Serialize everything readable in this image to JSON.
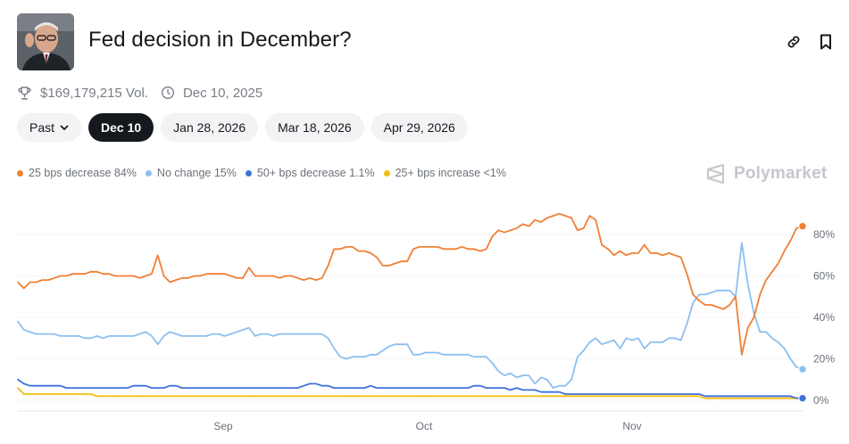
{
  "header": {
    "title": "Fed decision in December?",
    "link_icon": "link-icon",
    "bookmark_icon": "bookmark-icon"
  },
  "meta": {
    "volume": "$169,179,215 Vol.",
    "date": "Dec 10, 2025",
    "trophy_icon": "trophy-icon",
    "clock_icon": "clock-icon"
  },
  "tabs": [
    {
      "label": "Past",
      "active": false
    },
    {
      "label": "Dec 10",
      "active": true
    },
    {
      "label": "Jan 28, 2026",
      "active": false
    },
    {
      "label": "Mar 18, 2026",
      "active": false
    },
    {
      "label": "Apr 29, 2026",
      "active": false
    }
  ],
  "brand": "Polymarket",
  "colors": {
    "orange": "#f07f33",
    "light_blue": "#8cbff0",
    "blue": "#3e72dc",
    "yellow": "#f2bd0f"
  },
  "chart_data": {
    "type": "line",
    "x_ticks": [
      "Sep",
      "Oct",
      "Nov"
    ],
    "y_ticks": [
      "0%",
      "20%",
      "40%",
      "60%",
      "80%"
    ],
    "ylim": [
      0,
      100
    ],
    "grid": "horizontal dotted",
    "legend": "top-left",
    "series": [
      {
        "name": "25 bps decrease",
        "legend_label": "25 bps decrease 84%",
        "color": "#f07f33",
        "values": [
          57,
          54,
          57,
          57,
          58,
          58,
          59,
          60,
          60,
          61,
          61,
          61,
          62,
          62,
          61,
          61,
          60,
          60,
          60,
          60,
          59,
          60,
          61,
          70,
          60,
          57,
          58,
          59,
          59,
          60,
          60,
          61,
          61,
          61,
          61,
          60,
          59,
          59,
          64,
          60,
          60,
          60,
          60,
          59,
          60,
          60,
          59,
          58,
          59,
          58,
          59,
          65,
          73,
          73,
          74,
          74,
          72,
          72,
          71,
          69,
          65,
          65,
          66,
          67,
          67,
          73,
          74,
          74,
          74,
          74,
          73,
          73,
          73,
          74,
          73,
          73,
          72,
          73,
          79,
          82,
          81,
          82,
          83,
          85,
          84,
          87,
          86,
          88,
          89,
          90,
          89,
          88,
          82,
          83,
          89,
          87,
          75,
          73,
          70,
          72,
          70,
          71,
          71,
          75,
          71,
          71,
          70,
          71,
          70,
          69,
          61,
          51,
          48,
          46,
          46,
          45,
          44,
          46,
          50,
          22,
          35,
          40,
          51,
          58,
          62,
          66,
          72,
          77,
          83,
          84
        ]
      },
      {
        "name": "No change",
        "legend_label": "No change 15%",
        "color": "#8cbff0",
        "values": [
          38,
          34,
          33,
          32,
          32,
          32,
          32,
          31,
          31,
          31,
          31,
          30,
          30,
          31,
          30,
          31,
          31,
          31,
          31,
          31,
          32,
          33,
          31,
          27,
          31,
          33,
          32,
          31,
          31,
          31,
          31,
          31,
          32,
          32,
          31,
          32,
          33,
          34,
          35,
          31,
          32,
          32,
          31,
          32,
          32,
          32,
          32,
          32,
          32,
          32,
          32,
          30,
          25,
          21,
          20,
          21,
          21,
          21,
          22,
          22,
          24,
          26,
          27,
          27,
          27,
          22,
          22,
          23,
          23,
          23,
          22,
          22,
          22,
          22,
          22,
          21,
          21,
          21,
          18,
          14,
          12,
          13,
          11,
          12,
          12,
          8,
          11,
          10,
          6,
          7,
          7,
          10,
          21,
          24,
          28,
          30,
          27,
          28,
          29,
          25,
          30,
          29,
          30,
          25,
          28,
          28,
          28,
          30,
          30,
          29,
          37,
          47,
          51,
          51,
          52,
          53,
          53,
          53,
          50,
          76,
          56,
          42,
          33,
          33,
          30,
          28,
          25,
          20,
          16,
          15
        ]
      },
      {
        "name": "50+ bps decrease",
        "legend_label": "50+ bps decrease 1.1%",
        "color": "#3e72dc",
        "values": [
          10,
          8,
          7,
          7,
          7,
          7,
          7,
          7,
          6,
          6,
          6,
          6,
          6,
          6,
          6,
          6,
          6,
          6,
          6,
          7,
          7,
          7,
          6,
          6,
          6,
          7,
          7,
          6,
          6,
          6,
          6,
          6,
          6,
          6,
          6,
          6,
          6,
          6,
          6,
          6,
          6,
          6,
          6,
          6,
          6,
          6,
          6,
          7,
          8,
          8,
          7,
          7,
          6,
          6,
          6,
          6,
          6,
          6,
          7,
          6,
          6,
          6,
          6,
          6,
          6,
          6,
          6,
          6,
          6,
          6,
          6,
          6,
          6,
          6,
          6,
          7,
          7,
          6,
          6,
          6,
          6,
          5,
          6,
          5,
          5,
          5,
          4,
          4,
          4,
          4,
          3,
          3,
          3,
          3,
          3,
          3,
          3,
          3,
          3,
          3,
          3,
          3,
          3,
          3,
          3,
          3,
          3,
          3,
          3,
          3,
          3,
          3,
          3,
          2,
          2,
          2,
          2,
          2,
          2,
          2,
          2,
          2,
          2,
          2,
          2,
          2,
          2,
          2,
          1,
          1
        ]
      },
      {
        "name": "25+ bps increase",
        "legend_label": "25+ bps increase <1%",
        "color": "#f2bd0f",
        "values": [
          6,
          3,
          3,
          3,
          3,
          3,
          3,
          3,
          3,
          3,
          3,
          3,
          3,
          2,
          2,
          2,
          2,
          2,
          2,
          2,
          2,
          2,
          2,
          2,
          2,
          2,
          2,
          2,
          2,
          2,
          2,
          2,
          2,
          2,
          2,
          2,
          2,
          2,
          2,
          2,
          2,
          2,
          2,
          2,
          2,
          2,
          2,
          2,
          2,
          2,
          2,
          2,
          2,
          2,
          2,
          2,
          2,
          2,
          2,
          2,
          2,
          2,
          2,
          2,
          2,
          2,
          2,
          2,
          2,
          2,
          2,
          2,
          2,
          2,
          2,
          2,
          2,
          2,
          2,
          2,
          2,
          2,
          2,
          2,
          2,
          2,
          2,
          2,
          2,
          2,
          2,
          2,
          2,
          2,
          2,
          2,
          2,
          2,
          2,
          2,
          2,
          2,
          2,
          2,
          2,
          2,
          2,
          2,
          2,
          2,
          2,
          2,
          2,
          1,
          1,
          1,
          1,
          1,
          1,
          1,
          1,
          1,
          1,
          1,
          1,
          1,
          1,
          1,
          1,
          1
        ]
      }
    ]
  }
}
